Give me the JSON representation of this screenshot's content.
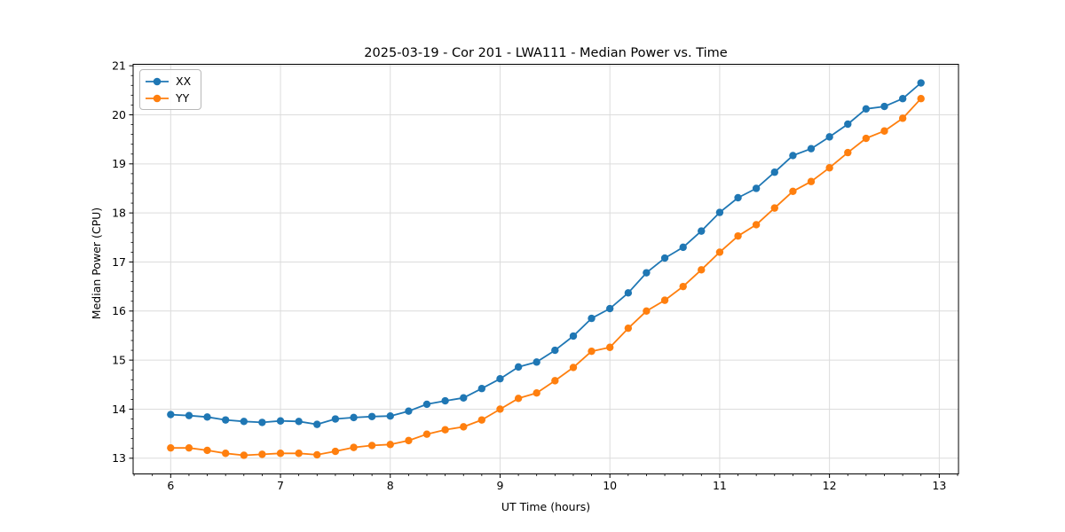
{
  "chart_data": {
    "type": "line",
    "title": "2025-03-19 - Cor 201 - LWA111 - Median Power vs. Time",
    "xlabel": "UT Time (hours)",
    "ylabel": "Median Power (CPU)",
    "xlim": [
      5.658,
      13.175
    ],
    "ylim": [
      12.68,
      21.03
    ],
    "xticks": [
      6,
      7,
      8,
      9,
      10,
      11,
      12,
      13
    ],
    "yticks": [
      13,
      14,
      15,
      16,
      17,
      18,
      19,
      20,
      21
    ],
    "x_minor_step": 0.16667,
    "y_minor_step": 0.2,
    "grid": "major",
    "grid_color": "#dcdcdc",
    "legend_position": "upper-left",
    "x": [
      6.0,
      6.167,
      6.333,
      6.5,
      6.667,
      6.833,
      7.0,
      7.167,
      7.333,
      7.5,
      7.667,
      7.833,
      8.0,
      8.167,
      8.333,
      8.5,
      8.667,
      8.833,
      9.0,
      9.167,
      9.333,
      9.5,
      9.667,
      9.833,
      10.0,
      10.167,
      10.333,
      10.5,
      10.667,
      10.833,
      11.0,
      11.167,
      11.333,
      11.5,
      11.667,
      11.833,
      12.0,
      12.167,
      12.333,
      12.5,
      12.667,
      12.833
    ],
    "series": [
      {
        "name": "XX",
        "color": "#1f77b4",
        "values": [
          13.89,
          13.87,
          13.84,
          13.78,
          13.75,
          13.73,
          13.76,
          13.75,
          13.69,
          13.8,
          13.83,
          13.85,
          13.86,
          13.96,
          14.1,
          14.17,
          14.23,
          14.42,
          14.62,
          14.86,
          14.96,
          15.2,
          15.49,
          15.85,
          16.05,
          16.37,
          16.78,
          17.08,
          17.3,
          17.63,
          18.01,
          18.31,
          18.5,
          18.83,
          19.17,
          19.31,
          19.55,
          19.81,
          20.12,
          20.17,
          20.33,
          20.65
        ]
      },
      {
        "name": "YY",
        "color": "#ff7f0e",
        "values": [
          13.21,
          13.21,
          13.16,
          13.1,
          13.06,
          13.08,
          13.1,
          13.1,
          13.07,
          13.14,
          13.22,
          13.26,
          13.28,
          13.36,
          13.49,
          13.58,
          13.64,
          13.78,
          14.0,
          14.22,
          14.33,
          14.58,
          14.85,
          15.18,
          15.26,
          15.65,
          16.0,
          16.22,
          16.5,
          16.84,
          17.2,
          17.53,
          17.76,
          18.1,
          18.44,
          18.64,
          18.92,
          19.23,
          19.52,
          19.67,
          19.93,
          20.33
        ]
      }
    ]
  }
}
